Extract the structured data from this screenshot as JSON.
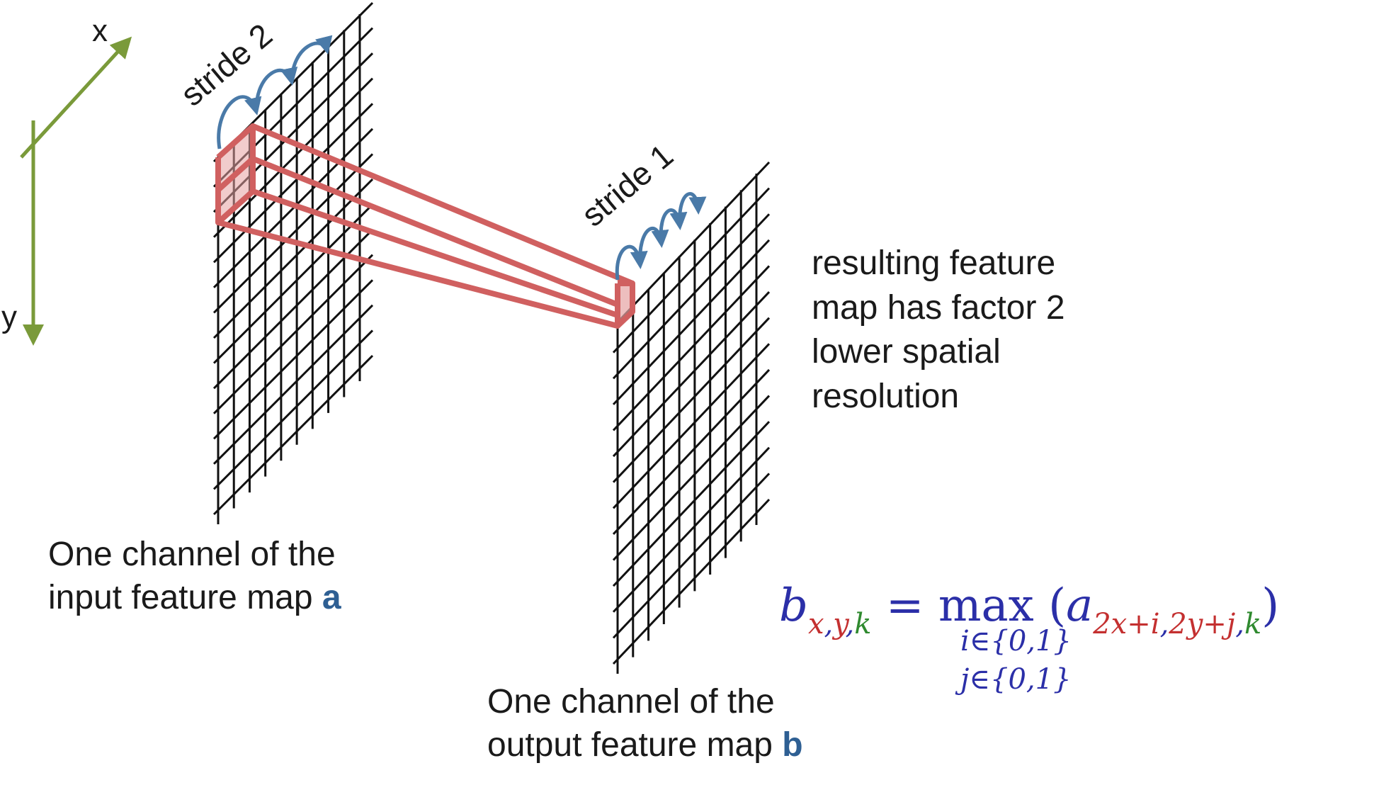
{
  "axes": {
    "x_label": "x",
    "y_label": "y"
  },
  "stride_input_label": "stride 2",
  "stride_output_label": "stride 1",
  "input_caption": {
    "line1": "One channel of the",
    "line2_prefix": "input feature map ",
    "var": "a"
  },
  "output_caption": {
    "line1": "One channel of the",
    "line2_prefix": "output feature map ",
    "var": "b"
  },
  "note_lines": [
    "resulting feature",
    "map has factor 2",
    "lower spatial",
    "resolution"
  ],
  "formula": {
    "lhs": "b",
    "lhs_sub_x": "x",
    "lhs_sub_y": "y",
    "lhs_sub_k": "k",
    "comma": ",",
    "equals": "=",
    "op": "max",
    "limit_i": "i∈{0,1}",
    "limit_j": "j∈{0,1}",
    "open": "(",
    "rhs": "a",
    "rhs_sub_x": "2x+i",
    "rhs_sub_y": "2y+j",
    "rhs_sub_k": "k",
    "close": ")"
  },
  "colors": {
    "axis": "#7a9a3a",
    "grid": "#111111",
    "pool": "#d06060",
    "arrow": "#4a7aa8",
    "emph": "#2e5f93",
    "formula_blue": "#2b2fa8",
    "formula_red": "#c43030",
    "formula_green": "#2f8a2f"
  }
}
